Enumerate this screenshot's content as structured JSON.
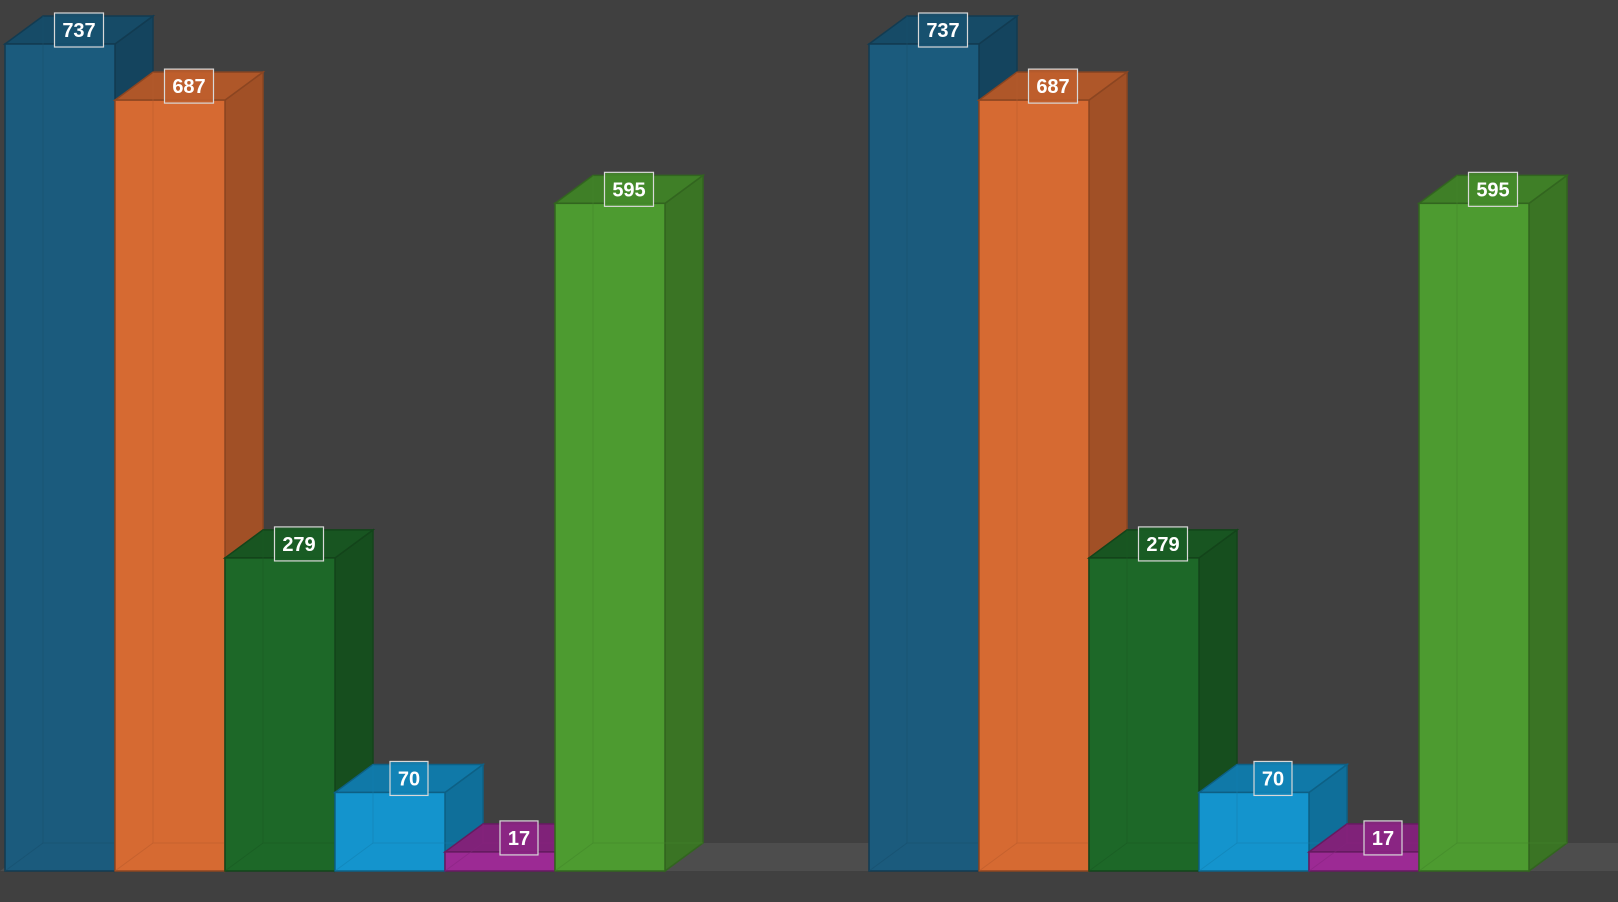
{
  "chart_data": [
    {
      "type": "bar",
      "style": "3d",
      "categories": [
        "",
        "",
        "",
        "",
        "",
        ""
      ],
      "values": [
        737,
        687,
        279,
        70,
        17,
        595
      ],
      "colors": [
        "#1b5b7d",
        "#d66a32",
        "#1d6828",
        "#1494cd",
        "#9c2a94",
        "#4d9b30"
      ],
      "data_labels": [
        "737",
        "687",
        "279",
        "70",
        "17",
        "595"
      ],
      "ylim": [
        0,
        737
      ],
      "grid": false,
      "legend": "none"
    },
    {
      "type": "bar",
      "style": "3d",
      "categories": [
        "",
        "",
        "",
        "",
        "",
        ""
      ],
      "values": [
        737,
        687,
        279,
        70,
        17,
        595
      ],
      "colors": [
        "#1b5b7d",
        "#d66a32",
        "#1d6828",
        "#1494cd",
        "#9c2a94",
        "#4d9b30"
      ],
      "data_labels": [
        "737",
        "687",
        "279",
        "70",
        "17",
        "595"
      ],
      "ylim": [
        0,
        737
      ],
      "grid": false,
      "legend": "none"
    }
  ],
  "colors": {
    "background": "#404040",
    "floor": "#4d4d4d",
    "label_border": "#d8d8d8"
  }
}
